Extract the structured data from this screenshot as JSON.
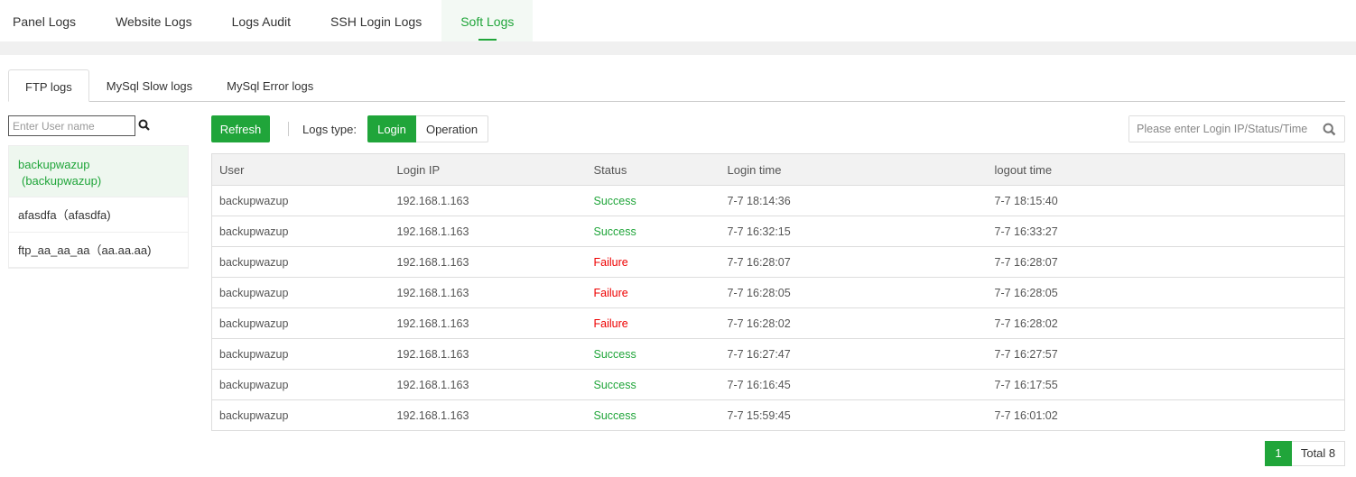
{
  "top_tabs": [
    {
      "label": "Panel Logs"
    },
    {
      "label": "Website Logs"
    },
    {
      "label": "Logs Audit"
    },
    {
      "label": "SSH Login Logs"
    },
    {
      "label": "Soft Logs",
      "active": true
    }
  ],
  "sub_tabs": [
    {
      "label": "FTP logs",
      "active": true
    },
    {
      "label": "MySql Slow logs"
    },
    {
      "label": "MySql Error logs"
    }
  ],
  "user_search": {
    "placeholder": "Enter User name",
    "icon": "search-icon"
  },
  "users": [
    {
      "label": "backupwazup（backupwazup)",
      "name": "backupwazup",
      "alias": "(backupwazup)"
    },
    {
      "label": "afasdfa（afasdfa)"
    },
    {
      "label": "ftp_aa_aa_aa（aa.aa.aa)"
    }
  ],
  "toolbar": {
    "refresh": "Refresh",
    "logs_type_label": "Logs type:",
    "login": "Login",
    "operation": "Operation",
    "search_placeholder": "Please enter Login IP/Status/Time"
  },
  "table": {
    "headers": [
      "User",
      "Login IP",
      "Status",
      "Login time",
      "logout time"
    ],
    "rows": [
      [
        "backupwazup",
        "192.168.1.163",
        "Success",
        "7-7 18:14:36",
        "7-7 18:15:40"
      ],
      [
        "backupwazup",
        "192.168.1.163",
        "Success",
        "7-7 16:32:15",
        "7-7 16:33:27"
      ],
      [
        "backupwazup",
        "192.168.1.163",
        "Failure",
        "7-7 16:28:07",
        "7-7 16:28:07"
      ],
      [
        "backupwazup",
        "192.168.1.163",
        "Failure",
        "7-7 16:28:05",
        "7-7 16:28:05"
      ],
      [
        "backupwazup",
        "192.168.1.163",
        "Failure",
        "7-7 16:28:02",
        "7-7 16:28:02"
      ],
      [
        "backupwazup",
        "192.168.1.163",
        "Success",
        "7-7 16:27:47",
        "7-7 16:27:57"
      ],
      [
        "backupwazup",
        "192.168.1.163",
        "Success",
        "7-7 16:16:45",
        "7-7 16:17:55"
      ],
      [
        "backupwazup",
        "192.168.1.163",
        "Success",
        "7-7 15:59:45",
        "7-7 16:01:02"
      ]
    ]
  },
  "pagination": {
    "current": "1",
    "total": "Total 8"
  },
  "colors": {
    "accent": "#20a53a",
    "failure": "#ee0000"
  }
}
